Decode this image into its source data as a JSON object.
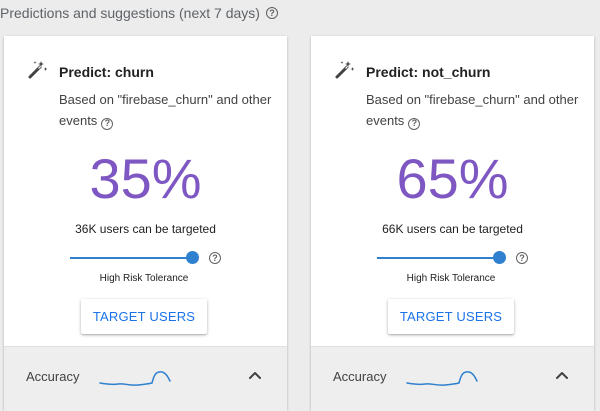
{
  "header": {
    "title": "Predictions and suggestions (next 7 days)",
    "help_glyph": "?"
  },
  "colors": {
    "percent": "#7e57c2",
    "accent": "#2f80cf",
    "button_text": "#1a73e8"
  },
  "cards": [
    {
      "title": "Predict: churn",
      "description": "Based on \"firebase_churn\" and other events",
      "percent": "35%",
      "target_count": "36K users can be targeted",
      "risk_label": "High Risk Tolerance",
      "risk_tolerance_level": 1.0,
      "button_label": "TARGET USERS",
      "accuracy_label": "Accuracy"
    },
    {
      "title": "Predict: not_churn",
      "description": "Based on \"firebase_churn\" and other events",
      "percent": "65%",
      "target_count": "66K users can be targeted",
      "risk_label": "High Risk Tolerance",
      "risk_tolerance_level": 1.0,
      "button_label": "TARGET USERS",
      "accuracy_label": "Accuracy"
    }
  ],
  "icons": {
    "card_icon": "magic-wand-icon",
    "help": "help-icon",
    "expand": "chevron-up-icon"
  }
}
